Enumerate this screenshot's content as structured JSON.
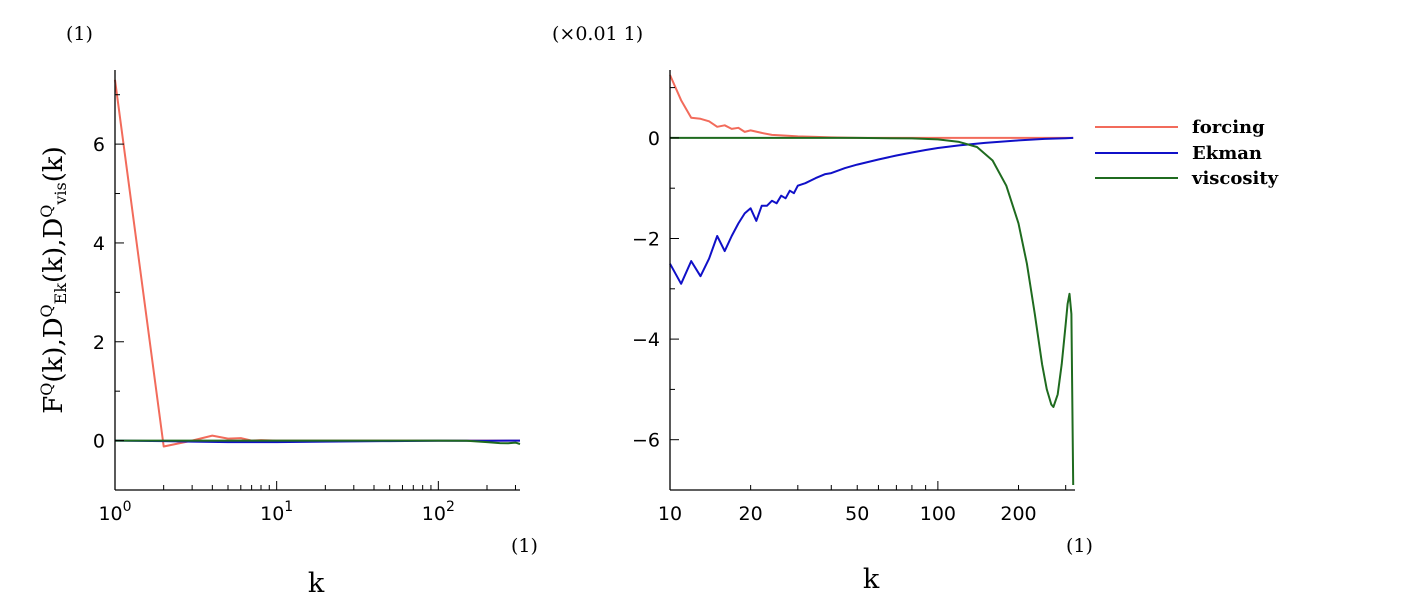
{
  "chart_data": [
    {
      "type": "line",
      "x_scale": "log",
      "xlim": [
        1,
        320
      ],
      "ylim": [
        -1,
        7.5
      ],
      "y_unit": "(1)",
      "x_unit": "(1)",
      "xlabel": "k",
      "ylabel": "F^Q(k), D^Q_Ek(k), D^Q_vis(k)",
      "x_ticks": [
        {
          "value": 1,
          "base": "10",
          "exp": "0"
        },
        {
          "value": 10,
          "base": "10",
          "exp": "1"
        },
        {
          "value": 100,
          "base": "10",
          "exp": "2"
        }
      ],
      "y_ticks": [
        {
          "value": 0,
          "label": "0"
        },
        {
          "value": 2,
          "label": "2"
        },
        {
          "value": 4,
          "label": "4"
        },
        {
          "value": 6,
          "label": "6"
        }
      ],
      "series": [
        {
          "key": "forcing",
          "color": "#f26b5b",
          "points": [
            [
              1,
              7.3
            ],
            [
              2,
              -0.12
            ],
            [
              3,
              0.0
            ],
            [
              4,
              0.1
            ],
            [
              5,
              0.04
            ],
            [
              6,
              0.05
            ],
            [
              7,
              0.0
            ],
            [
              8,
              0.01
            ],
            [
              10,
              0.0
            ],
            [
              20,
              0.0
            ],
            [
              50,
              0.0
            ],
            [
              100,
              0.0
            ],
            [
              200,
              0.0
            ],
            [
              320,
              0.0
            ]
          ]
        },
        {
          "key": "ekman",
          "color": "#1010c8",
          "points": [
            [
              1,
              0.0
            ],
            [
              2,
              -0.01
            ],
            [
              3,
              -0.02
            ],
            [
              5,
              -0.03
            ],
            [
              10,
              -0.03
            ],
            [
              20,
              -0.02
            ],
            [
              50,
              -0.01
            ],
            [
              100,
              -0.005
            ],
            [
              200,
              -0.002
            ],
            [
              320,
              0.0
            ]
          ]
        },
        {
          "key": "viscosity",
          "color": "#1f6b1f",
          "points": [
            [
              1,
              0.0
            ],
            [
              10,
              0.0
            ],
            [
              50,
              0.0
            ],
            [
              100,
              0.0
            ],
            [
              150,
              -0.005
            ],
            [
              200,
              -0.03
            ],
            [
              240,
              -0.05
            ],
            [
              270,
              -0.055
            ],
            [
              300,
              -0.04
            ],
            [
              320,
              -0.07
            ]
          ]
        }
      ]
    },
    {
      "type": "line",
      "x_scale": "log",
      "xlim": [
        10,
        325
      ],
      "ylim": [
        -7,
        1.35
      ],
      "y_unit": "(×0.01  1)",
      "x_unit": "(1)",
      "xlabel": "k",
      "x_ticks": [
        {
          "value": 10,
          "label": "10"
        },
        {
          "value": 20,
          "label": "20"
        },
        {
          "value": 50,
          "label": "50"
        },
        {
          "value": 100,
          "label": "100"
        },
        {
          "value": 200,
          "label": "200"
        }
      ],
      "y_ticks": [
        {
          "value": 0,
          "label": "0"
        },
        {
          "value": -2,
          "label": "−2"
        },
        {
          "value": -4,
          "label": "−4"
        },
        {
          "value": -6,
          "label": "−6"
        }
      ],
      "series": [
        {
          "key": "forcing",
          "color": "#f26b5b",
          "points": [
            [
              10,
              1.25
            ],
            [
              11,
              0.75
            ],
            [
              12,
              0.4
            ],
            [
              13,
              0.38
            ],
            [
              14,
              0.33
            ],
            [
              15,
              0.22
            ],
            [
              16,
              0.25
            ],
            [
              17,
              0.18
            ],
            [
              18,
              0.2
            ],
            [
              19,
              0.12
            ],
            [
              20,
              0.15
            ],
            [
              22,
              0.1
            ],
            [
              24,
              0.06
            ],
            [
              26,
              0.05
            ],
            [
              28,
              0.04
            ],
            [
              30,
              0.03
            ],
            [
              35,
              0.02
            ],
            [
              40,
              0.01
            ],
            [
              50,
              0.0
            ],
            [
              100,
              0.0
            ],
            [
              200,
              0.0
            ],
            [
              320,
              0.0
            ]
          ]
        },
        {
          "key": "ekman",
          "color": "#1010c8",
          "points": [
            [
              10,
              -2.5
            ],
            [
              11,
              -2.9
            ],
            [
              12,
              -2.45
            ],
            [
              13,
              -2.75
            ],
            [
              14,
              -2.4
            ],
            [
              15,
              -1.95
            ],
            [
              16,
              -2.25
            ],
            [
              17,
              -1.95
            ],
            [
              18,
              -1.7
            ],
            [
              19,
              -1.5
            ],
            [
              20,
              -1.4
            ],
            [
              21,
              -1.65
            ],
            [
              22,
              -1.35
            ],
            [
              23,
              -1.35
            ],
            [
              24,
              -1.25
            ],
            [
              25,
              -1.3
            ],
            [
              26,
              -1.15
            ],
            [
              27,
              -1.2
            ],
            [
              28,
              -1.05
            ],
            [
              29,
              -1.1
            ],
            [
              30,
              -0.95
            ],
            [
              32,
              -0.9
            ],
            [
              35,
              -0.8
            ],
            [
              38,
              -0.72
            ],
            [
              40,
              -0.7
            ],
            [
              45,
              -0.6
            ],
            [
              50,
              -0.53
            ],
            [
              60,
              -0.43
            ],
            [
              70,
              -0.35
            ],
            [
              80,
              -0.29
            ],
            [
              90,
              -0.24
            ],
            [
              100,
              -0.2
            ],
            [
              120,
              -0.15
            ],
            [
              150,
              -0.1
            ],
            [
              200,
              -0.05
            ],
            [
              250,
              -0.02
            ],
            [
              300,
              -0.005
            ],
            [
              320,
              0.0
            ]
          ]
        },
        {
          "key": "viscosity",
          "color": "#1f6b1f",
          "points": [
            [
              10,
              0.0
            ],
            [
              50,
              0.0
            ],
            [
              80,
              -0.01
            ],
            [
              100,
              -0.03
            ],
            [
              120,
              -0.08
            ],
            [
              140,
              -0.18
            ],
            [
              160,
              -0.45
            ],
            [
              180,
              -0.95
            ],
            [
              200,
              -1.7
            ],
            [
              215,
              -2.5
            ],
            [
              230,
              -3.5
            ],
            [
              245,
              -4.5
            ],
            [
              255,
              -5.0
            ],
            [
              265,
              -5.3
            ],
            [
              270,
              -5.35
            ],
            [
              280,
              -5.1
            ],
            [
              290,
              -4.5
            ],
            [
              300,
              -3.7
            ],
            [
              305,
              -3.3
            ],
            [
              310,
              -3.1
            ],
            [
              315,
              -3.5
            ],
            [
              320,
              -6.9
            ]
          ]
        }
      ]
    }
  ],
  "legend": [
    {
      "key": "forcing",
      "label": "forcing",
      "color": "#f26b5b"
    },
    {
      "key": "ekman",
      "label": "Ekman",
      "color": "#1010c8"
    },
    {
      "key": "viscosity",
      "label": "viscosity",
      "color": "#1f6b1f"
    }
  ]
}
